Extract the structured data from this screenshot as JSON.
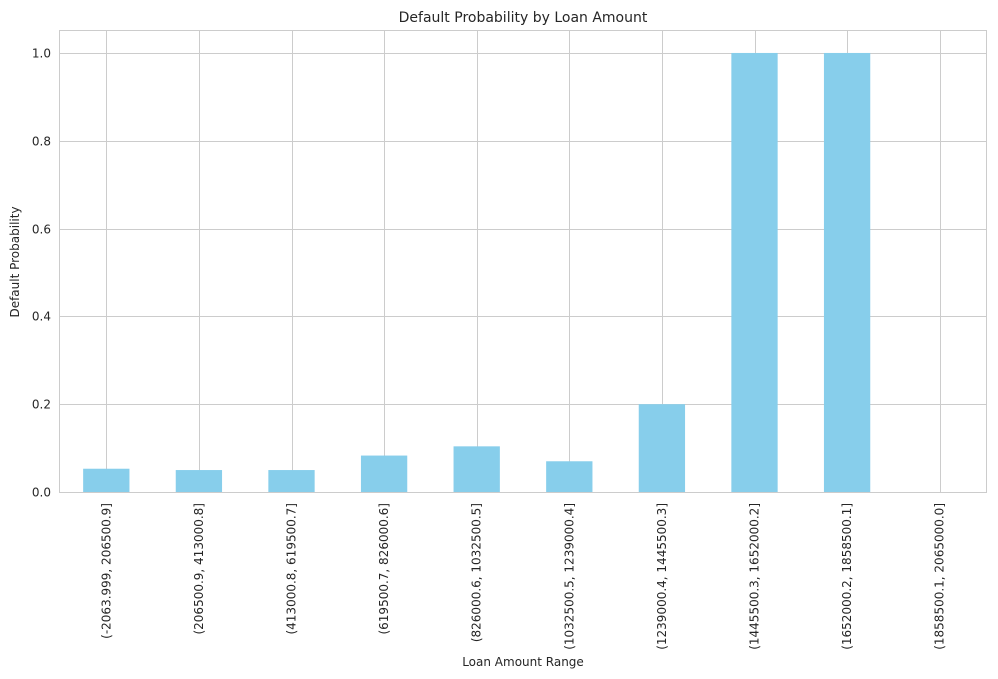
{
  "chart_data": {
    "type": "bar",
    "title": "Default Probability by Loan Amount",
    "xlabel": "Loan Amount Range",
    "ylabel": "Default Probability",
    "categories": [
      "(-2063.999, 206500.9]",
      "(206500.9, 413000.8]",
      "(413000.8, 619500.7]",
      "(619500.7, 826000.6]",
      "(826000.6, 1032500.5]",
      "(1032500.5, 1239000.4]",
      "(1239000.4, 1445500.3]",
      "(1445500.3, 1652000.2]",
      "(1652000.2, 1858500.1]",
      "(1858500.1, 2065000.0]"
    ],
    "values": [
      0.053,
      0.05,
      0.05,
      0.083,
      0.104,
      0.07,
      0.2,
      1.0,
      1.0,
      0.0
    ],
    "ylim": [
      0,
      1.05
    ],
    "yticks": [
      0.0,
      0.2,
      0.4,
      0.6,
      0.8,
      1.0
    ],
    "ytick_labels": [
      "0.0",
      "0.2",
      "0.4",
      "0.6",
      "0.8",
      "1.0"
    ],
    "grid": true,
    "bar_color": "#87ceeb",
    "grid_color": "#cccccc"
  }
}
